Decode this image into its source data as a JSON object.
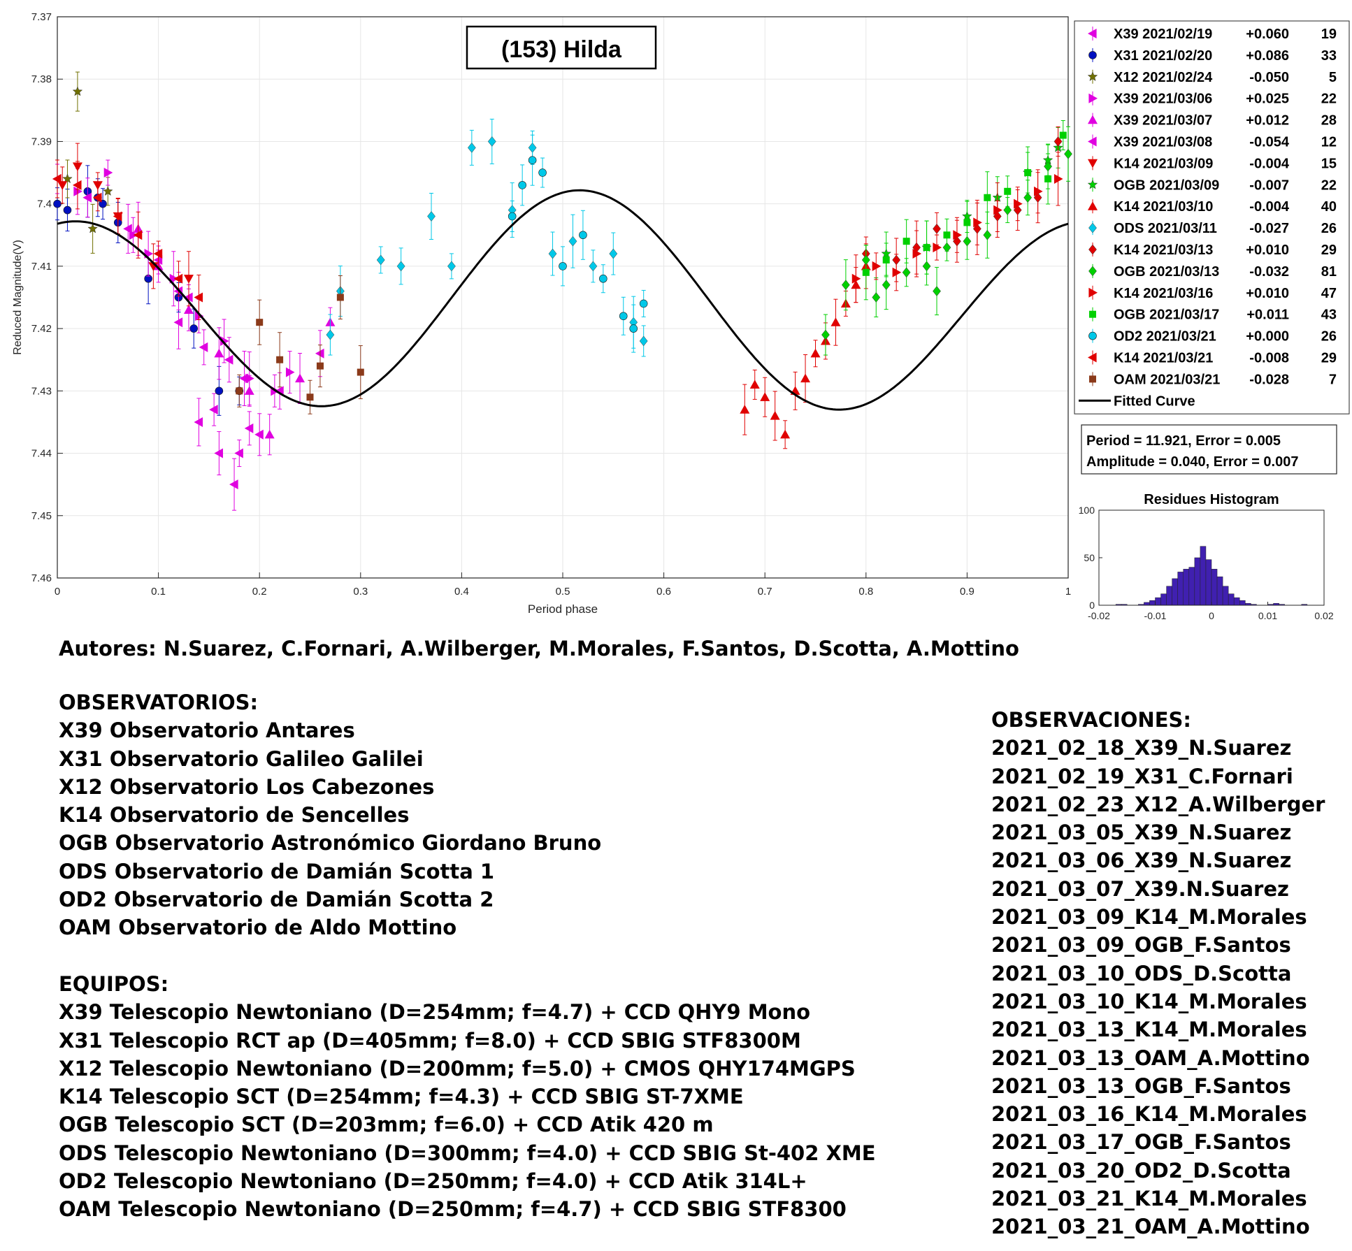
{
  "chart_data": {
    "type": "scatter",
    "title": "(153) Hilda",
    "xlabel": "Period phase",
    "ylabel": "Reduced Magnitude(V)",
    "xlim": [
      0,
      1
    ],
    "ylim": [
      7.37,
      7.46
    ],
    "y_reversed": true,
    "grid": true,
    "xticks": [
      "0",
      "0.1",
      "0.2",
      "0.3",
      "0.4",
      "0.5",
      "0.6",
      "0.7",
      "0.8",
      "0.9",
      "1"
    ],
    "yticks": [
      "7.37",
      "7.38",
      "7.39",
      "7.4",
      "7.41",
      "7.42",
      "7.43",
      "7.44",
      "7.45",
      "7.46"
    ],
    "legend_position": "outside-right",
    "legend": [
      {
        "label": "X39 2021/02/19",
        "offset": "+0.060",
        "n": "19",
        "color": "#e000e0",
        "marker": "tri-left"
      },
      {
        "label": "X31 2021/02/20",
        "offset": "+0.086",
        "n": "33",
        "color": "#0010c0",
        "marker": "circle"
      },
      {
        "label": "X12 2021/02/24",
        "offset": "-0.050",
        "n": "5",
        "color": "#707000",
        "marker": "star"
      },
      {
        "label": "X39 2021/03/06",
        "offset": "+0.025",
        "n": "22",
        "color": "#e000e0",
        "marker": "tri-right"
      },
      {
        "label": "X39 2021/03/07",
        "offset": "+0.012",
        "n": "28",
        "color": "#e000e0",
        "marker": "tri-up"
      },
      {
        "label": "X39 2021/03/08",
        "offset": "-0.054",
        "n": "12",
        "color": "#e000e0",
        "marker": "tri-left"
      },
      {
        "label": "K14 2021/03/09",
        "offset": "-0.004",
        "n": "15",
        "color": "#e00000",
        "marker": "tri-down"
      },
      {
        "label": "OGB 2021/03/09",
        "offset": "-0.007",
        "n": "22",
        "color": "#00d000",
        "marker": "star"
      },
      {
        "label": "K14 2021/03/10",
        "offset": "-0.004",
        "n": "40",
        "color": "#e00000",
        "marker": "tri-up"
      },
      {
        "label": "ODS 2021/03/11",
        "offset": "-0.027",
        "n": "26",
        "color": "#00c8e8",
        "marker": "diamond"
      },
      {
        "label": "K14 2021/03/13",
        "offset": "+0.010",
        "n": "29",
        "color": "#e00000",
        "marker": "diamond"
      },
      {
        "label": "OGB 2021/03/13",
        "offset": "-0.032",
        "n": "81",
        "color": "#00d000",
        "marker": "diamond"
      },
      {
        "label": "K14 2021/03/16",
        "offset": "+0.010",
        "n": "47",
        "color": "#e00000",
        "marker": "tri-right"
      },
      {
        "label": "OGB 2021/03/17",
        "offset": "+0.011",
        "n": "43",
        "color": "#00d000",
        "marker": "square"
      },
      {
        "label": "OD2 2021/03/21",
        "offset": "+0.000",
        "n": "26",
        "color": "#00c8e8",
        "marker": "circle"
      },
      {
        "label": "K14 2021/03/21",
        "offset": "-0.008",
        "n": "29",
        "color": "#e00000",
        "marker": "tri-left"
      },
      {
        "label": "OAM 2021/03/21",
        "offset": "-0.028",
        "n": "7",
        "color": "#8b3a1a",
        "marker": "square"
      }
    ],
    "fitted_curve": {
      "label": "Fitted Curve",
      "mean": 7.4165,
      "amplitude_half": 0.0165,
      "coefficients": {
        "a1_cos": 0.0025,
        "b1_sin": 0.0,
        "a2_cos": -0.0158,
        "b2_sin": -0.0035
      }
    },
    "series": [
      {
        "name": "X39 2021/02/19",
        "x": [
          0.13,
          0.145,
          0.17,
          0.185,
          0.19,
          0.16,
          0.12,
          0.155,
          0.2,
          0.175
        ],
        "y": [
          7.415,
          7.423,
          7.425,
          7.428,
          7.436,
          7.44,
          7.419,
          7.433,
          7.437,
          7.445
        ]
      },
      {
        "name": "X31 2021/02/20",
        "x": [
          0.0,
          0.01,
          0.03,
          0.045,
          0.06,
          0.09,
          0.12,
          0.135,
          0.16,
          0.18,
          0.04
        ],
        "y": [
          7.4,
          7.401,
          7.398,
          7.4,
          7.403,
          7.412,
          7.415,
          7.42,
          7.43,
          7.43,
          7.399
        ]
      },
      {
        "name": "X12 2021/02/24",
        "x": [
          0.02,
          0.035,
          0.05,
          0.01
        ],
        "y": [
          7.382,
          7.404,
          7.398,
          7.396
        ]
      },
      {
        "name": "X39 2021/03/06",
        "x": [
          0.02,
          0.05,
          0.075,
          0.09,
          0.115,
          0.14,
          0.165,
          0.19,
          0.215,
          0.23
        ],
        "y": [
          7.398,
          7.395,
          7.405,
          7.408,
          7.412,
          7.418,
          7.422,
          7.428,
          7.43,
          7.427
        ]
      },
      {
        "name": "X39 2021/03/07",
        "x": [
          0.08,
          0.1,
          0.13,
          0.16,
          0.19,
          0.21,
          0.24,
          0.27
        ],
        "y": [
          7.404,
          7.41,
          7.417,
          7.424,
          7.43,
          7.437,
          7.428,
          7.419
        ]
      },
      {
        "name": "X39 2021/03/08",
        "x": [
          0.0,
          0.03,
          0.07,
          0.1,
          0.12,
          0.14,
          0.18,
          0.22,
          0.26
        ],
        "y": [
          7.396,
          7.399,
          7.404,
          7.409,
          7.414,
          7.435,
          7.44,
          7.43,
          7.424
        ]
      },
      {
        "name": "K14 2021/03/09",
        "x": [
          0.005,
          0.02,
          0.04,
          0.06,
          0.095,
          0.13
        ],
        "y": [
          7.397,
          7.394,
          7.397,
          7.402,
          7.41,
          7.412
        ]
      },
      {
        "name": "OGB 2021/03/09",
        "x": [
          0.82,
          0.86,
          0.9,
          0.93,
          0.96,
          0.98,
          0.99
        ],
        "y": [
          7.408,
          7.407,
          7.402,
          7.399,
          7.395,
          7.393,
          7.391
        ]
      },
      {
        "name": "K14 2021/03/10",
        "x": [
          0.68,
          0.69,
          0.7,
          0.71,
          0.72,
          0.73,
          0.74,
          0.75,
          0.76,
          0.77,
          0.78,
          0.79,
          0.8
        ],
        "y": [
          7.433,
          7.429,
          7.431,
          7.434,
          7.437,
          7.43,
          7.428,
          7.424,
          7.422,
          7.419,
          7.416,
          7.413,
          7.41
        ]
      },
      {
        "name": "ODS 2021/03/11",
        "x": [
          0.32,
          0.34,
          0.37,
          0.39,
          0.41,
          0.43,
          0.45,
          0.47,
          0.49,
          0.51,
          0.53,
          0.55,
          0.57,
          0.58,
          0.27,
          0.28
        ],
        "y": [
          7.409,
          7.41,
          7.402,
          7.41,
          7.391,
          7.39,
          7.401,
          7.391,
          7.408,
          7.406,
          7.41,
          7.408,
          7.419,
          7.422,
          7.421,
          7.414
        ]
      },
      {
        "name": "K14 2021/03/13",
        "x": [
          0.8,
          0.83,
          0.85,
          0.87,
          0.89,
          0.91,
          0.93,
          0.95,
          0.97,
          0.99
        ],
        "y": [
          7.408,
          7.409,
          7.407,
          7.404,
          7.406,
          7.404,
          7.402,
          7.401,
          7.399,
          7.39
        ]
      },
      {
        "name": "OGB 2021/03/13",
        "x": [
          0.76,
          0.78,
          0.8,
          0.81,
          0.82,
          0.84,
          0.86,
          0.87,
          0.88,
          0.9,
          0.92,
          0.94,
          0.96,
          0.98,
          1.0
        ],
        "y": [
          7.421,
          7.413,
          7.409,
          7.415,
          7.413,
          7.411,
          7.41,
          7.414,
          7.407,
          7.406,
          7.405,
          7.401,
          7.399,
          7.394,
          7.392
        ]
      },
      {
        "name": "K14 2021/03/16",
        "x": [
          0.79,
          0.81,
          0.83,
          0.85,
          0.87,
          0.89,
          0.91,
          0.93,
          0.95,
          0.97,
          0.99
        ],
        "y": [
          7.412,
          7.41,
          7.411,
          7.408,
          7.407,
          7.405,
          7.403,
          7.401,
          7.4,
          7.398,
          7.396
        ]
      },
      {
        "name": "OGB 2021/03/17",
        "x": [
          0.8,
          0.82,
          0.84,
          0.86,
          0.88,
          0.9,
          0.92,
          0.94,
          0.96,
          0.98,
          0.995
        ],
        "y": [
          7.411,
          7.409,
          7.406,
          7.407,
          7.405,
          7.403,
          7.399,
          7.398,
          7.395,
          7.396,
          7.389
        ]
      },
      {
        "name": "OD2 2021/03/21",
        "x": [
          0.45,
          0.46,
          0.47,
          0.48,
          0.5,
          0.52,
          0.54,
          0.56,
          0.57,
          0.58
        ],
        "y": [
          7.402,
          7.397,
          7.393,
          7.395,
          7.41,
          7.405,
          7.412,
          7.418,
          7.42,
          7.416
        ]
      },
      {
        "name": "K14 2021/03/21",
        "x": [
          0.0,
          0.02,
          0.04,
          0.06,
          0.08,
          0.1,
          0.12,
          0.14
        ],
        "y": [
          7.396,
          7.397,
          7.399,
          7.402,
          7.405,
          7.408,
          7.412,
          7.415
        ]
      },
      {
        "name": "OAM 2021/03/21",
        "x": [
          0.2,
          0.22,
          0.25,
          0.28,
          0.3,
          0.18,
          0.26
        ],
        "y": [
          7.419,
          7.425,
          7.431,
          7.415,
          7.427,
          7.43,
          7.426
        ]
      }
    ],
    "info_box": {
      "line1": "Period =  11.921, Error = 0.005",
      "line2": "Amplitude = 0.040, Error = 0.007"
    },
    "histogram": {
      "title": "Residues Histogram",
      "xlim": [
        -0.02,
        0.02
      ],
      "ylim": [
        0,
        100
      ],
      "xticks": [
        "-0.02",
        "-0.01",
        "0",
        "0.01",
        "0.02"
      ],
      "yticks": [
        "0",
        "50",
        "100"
      ],
      "bin_width": 0.001,
      "bins_start": -0.017,
      "counts": [
        1,
        1,
        0,
        0,
        1,
        3,
        5,
        8,
        12,
        20,
        28,
        35,
        38,
        40,
        50,
        62,
        48,
        38,
        30,
        20,
        12,
        8,
        5,
        2,
        1,
        0,
        0,
        1,
        2,
        1,
        0,
        0,
        0,
        1
      ],
      "bar_color": "#4020b0"
    }
  },
  "text": {
    "authors": "Autores: N.Suarez, C.Fornari, A.Wilberger, M.Morales, F.Santos, D.Scotta, A.Mottino",
    "observatorios_title": "OBSERVATORIOS:",
    "observatorios": [
      "X39 Observatorio Antares",
      "X31 Observatorio Galileo Galilei",
      "X12 Observatorio Los Cabezones",
      "K14 Observatorio de Sencelles",
      "OGB Observatorio Astronómico Giordano Bruno",
      "ODS Observatorio de Damián Scotta 1",
      "OD2 Observatorio de Damián Scotta 2",
      "OAM Observatorio de Aldo Mottino"
    ],
    "equipos_title": "EQUIPOS:",
    "equipos": [
      "X39 Telescopio Newtoniano (D=254mm; f=4.7) + CCD QHY9 Mono",
      "X31 Telescopio RCT ap (D=405mm; f=8.0) + CCD SBIG STF8300M",
      "X12 Telescopio Newtoniano (D=200mm; f=5.0) + CMOS QHY174MGPS",
      "K14 Telescopio SCT (D=254mm; f=4.3) + CCD SBIG ST-7XME",
      "OGB Telescopio SCT (D=203mm; f=6.0) + CCD Atik 420 m",
      "ODS Telescopio Newtoniano (D=300mm; f=4.0) + CCD SBIG St-402 XME",
      "OD2 Telescopio Newtoniano (D=250mm; f=4.0) + CCD Atik 314L+",
      "OAM Telescopio Newtoniano (D=250mm; f=4.7) + CCD SBIG STF8300"
    ],
    "observaciones_title": "OBSERVACIONES:",
    "observaciones": [
      "2021_02_18_X39_N.Suarez",
      "2021_02_19_X31_C.Fornari",
      "2021_02_23_X12_A.Wilberger",
      "2021_03_05_X39_N.Suarez",
      "2021_03_06_X39_N.Suarez",
      "2021_03_07_X39.N.Suarez",
      "2021_03_09_K14_M.Morales",
      "2021_03_09_OGB_F.Santos",
      "2021_03_10_ODS_D.Scotta",
      "2021_03_10_K14_M.Morales",
      "2021_03_13_K14_M.Morales",
      "2021_03_13_OAM_A.Mottino",
      "2021_03_13_OGB_F.Santos",
      "2021_03_16_K14_M.Morales",
      "2021_03_17_OGB_F.Santos",
      "2021_03_20_OD2_D.Scotta",
      "2021_03_21_K14_M.Morales",
      "2021_03_21_OAM_A.Mottino"
    ]
  }
}
